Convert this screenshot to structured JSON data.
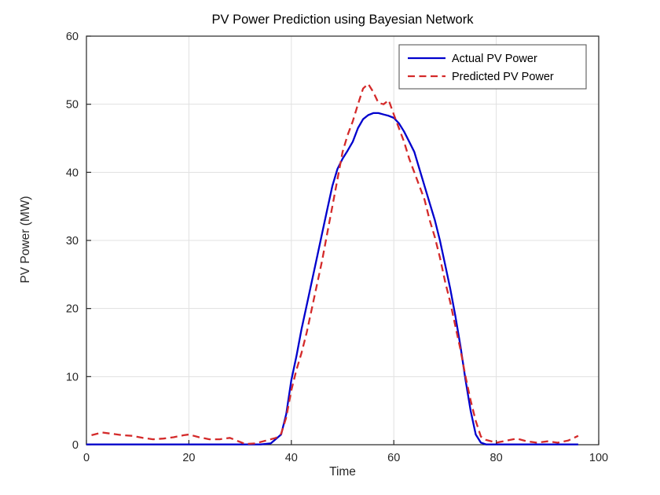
{
  "chart_data": {
    "type": "line",
    "title": "PV Power Prediction using Bayesian Network",
    "xlabel": "Time",
    "ylabel": "PV Power (MW)",
    "xlim": [
      0,
      100
    ],
    "ylim": [
      0,
      60
    ],
    "xticks": [
      0,
      20,
      40,
      60,
      80,
      100
    ],
    "yticks": [
      0,
      10,
      20,
      30,
      40,
      50,
      60
    ],
    "grid": true,
    "legend_position": "top-right",
    "axis_color": "#262626",
    "grid_color": "#e1e1e1",
    "legend_border_color": "#5a5a5a",
    "series": [
      {
        "name": "Actual PV Power",
        "color": "#0000cd",
        "dash": "solid",
        "width": 2.3,
        "points": [
          [
            0,
            0.05
          ],
          [
            4,
            0.05
          ],
          [
            8,
            0.05
          ],
          [
            12,
            0.05
          ],
          [
            16,
            0.05
          ],
          [
            20,
            0.05
          ],
          [
            24,
            0.05
          ],
          [
            28,
            0.05
          ],
          [
            32,
            0.05
          ],
          [
            34,
            0.05
          ],
          [
            36,
            0.2
          ],
          [
            38,
            1.5
          ],
          [
            39,
            4.5
          ],
          [
            40,
            9.5
          ],
          [
            41,
            13
          ],
          [
            42,
            17
          ],
          [
            43,
            20.5
          ],
          [
            44,
            24
          ],
          [
            45,
            27.5
          ],
          [
            46,
            31
          ],
          [
            47,
            34.5
          ],
          [
            48,
            38
          ],
          [
            49,
            40.5
          ],
          [
            50,
            42
          ],
          [
            51,
            43.2
          ],
          [
            52,
            44.5
          ],
          [
            53,
            46.5
          ],
          [
            54,
            47.8
          ],
          [
            55,
            48.4
          ],
          [
            56,
            48.7
          ],
          [
            57,
            48.7
          ],
          [
            58,
            48.5
          ],
          [
            59,
            48.3
          ],
          [
            60,
            48
          ],
          [
            61,
            47.2
          ],
          [
            62,
            46
          ],
          [
            63,
            44.5
          ],
          [
            64,
            43
          ],
          [
            65,
            40.5
          ],
          [
            66,
            38
          ],
          [
            67,
            35.5
          ],
          [
            68,
            33
          ],
          [
            69,
            30
          ],
          [
            70,
            26.5
          ],
          [
            71,
            23
          ],
          [
            72,
            19
          ],
          [
            73,
            14.5
          ],
          [
            74,
            9.5
          ],
          [
            75,
            5
          ],
          [
            76,
            1.5
          ],
          [
            77,
            0.3
          ],
          [
            78,
            0.05
          ],
          [
            82,
            0.05
          ],
          [
            86,
            0.05
          ],
          [
            90,
            0.05
          ],
          [
            94,
            0.05
          ],
          [
            96,
            0.05
          ]
        ]
      },
      {
        "name": "Predicted PV Power",
        "color": "#d42a2a",
        "dash": "dashed",
        "width": 2.3,
        "points": [
          [
            1,
            1.4
          ],
          [
            3,
            1.8
          ],
          [
            5,
            1.6
          ],
          [
            7,
            1.4
          ],
          [
            9,
            1.3
          ],
          [
            11,
            1.0
          ],
          [
            13,
            0.8
          ],
          [
            15,
            0.9
          ],
          [
            17,
            1.1
          ],
          [
            19,
            1.4
          ],
          [
            20,
            1.5
          ],
          [
            22,
            1.1
          ],
          [
            24,
            0.8
          ],
          [
            26,
            0.8
          ],
          [
            28,
            1.0
          ],
          [
            30,
            0.4
          ],
          [
            31,
            0.1
          ],
          [
            33,
            0.2
          ],
          [
            35,
            0.6
          ],
          [
            37,
            1.0
          ],
          [
            38,
            1.6
          ],
          [
            39,
            4
          ],
          [
            40,
            8
          ],
          [
            41,
            11
          ],
          [
            42,
            13.5
          ],
          [
            43,
            16.5
          ],
          [
            44,
            20
          ],
          [
            45,
            23.5
          ],
          [
            46,
            27
          ],
          [
            47,
            31
          ],
          [
            48,
            35
          ],
          [
            49,
            39
          ],
          [
            50,
            43
          ],
          [
            51,
            45.5
          ],
          [
            52,
            47.5
          ],
          [
            53,
            50
          ],
          [
            54,
            52.3
          ],
          [
            55,
            53
          ],
          [
            56,
            51.8
          ],
          [
            57,
            50.2
          ],
          [
            58,
            50
          ],
          [
            59,
            50.6
          ],
          [
            60,
            48.5
          ],
          [
            61,
            46.5
          ],
          [
            62,
            44.5
          ],
          [
            63,
            42
          ],
          [
            64,
            40
          ],
          [
            65,
            38
          ],
          [
            66,
            36
          ],
          [
            67,
            33
          ],
          [
            68,
            30.5
          ],
          [
            69,
            27.5
          ],
          [
            70,
            24
          ],
          [
            71,
            21
          ],
          [
            72,
            17.5
          ],
          [
            73,
            14
          ],
          [
            74,
            10
          ],
          [
            75,
            6.5
          ],
          [
            76,
            3.5
          ],
          [
            77,
            1.2
          ],
          [
            78,
            0.7
          ],
          [
            80,
            0.3
          ],
          [
            82,
            0.6
          ],
          [
            84,
            0.9
          ],
          [
            86,
            0.5
          ],
          [
            88,
            0.3
          ],
          [
            90,
            0.5
          ],
          [
            92,
            0.3
          ],
          [
            94,
            0.6
          ],
          [
            96,
            1.3
          ]
        ]
      }
    ]
  }
}
